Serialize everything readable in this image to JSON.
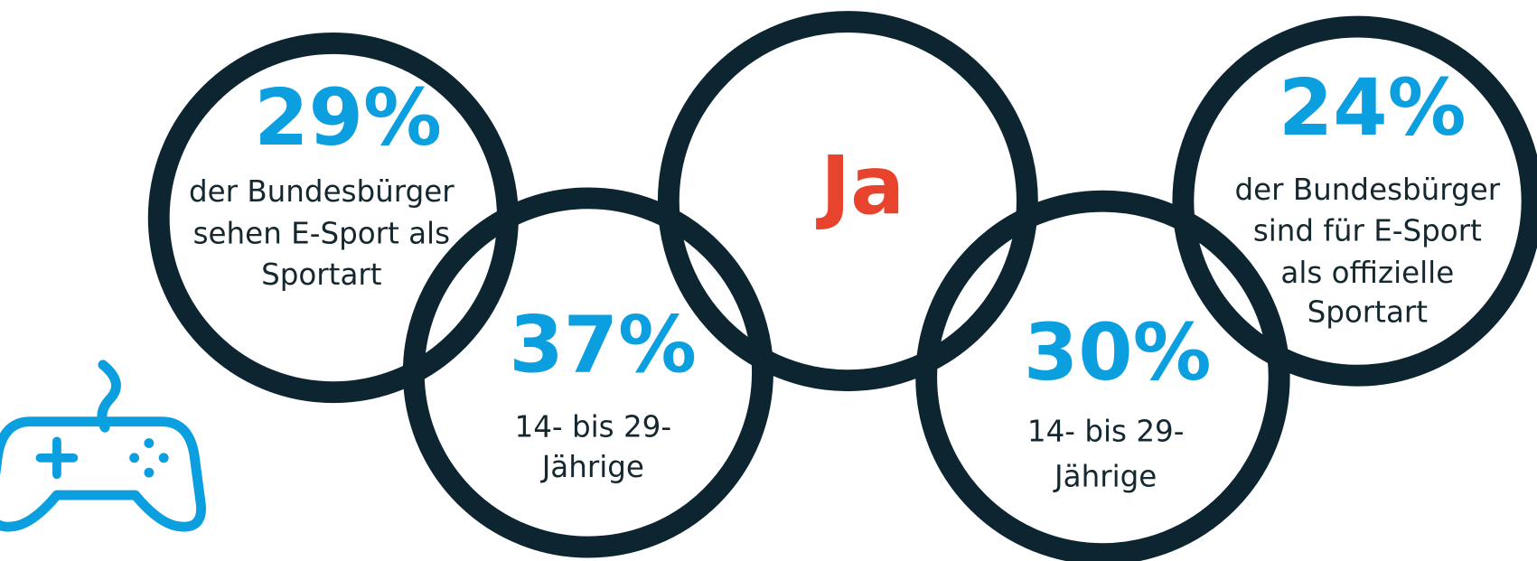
{
  "circles": [
    {
      "value": "29%",
      "lines": [
        "der Bundesbürger",
        "sehen E-Sport als",
        "Sportart"
      ]
    },
    {
      "value": "37%",
      "lines": [
        "14- bis 29-",
        "Jährige"
      ]
    },
    {
      "value": "Ja",
      "lines": []
    },
    {
      "value": "30%",
      "lines": [
        "14- bis 29-",
        "Jährige"
      ]
    },
    {
      "value": "24%",
      "lines": [
        "der Bundesbürger",
        "sind für E-Sport",
        "als offizielle",
        "Sportart"
      ]
    }
  ]
}
